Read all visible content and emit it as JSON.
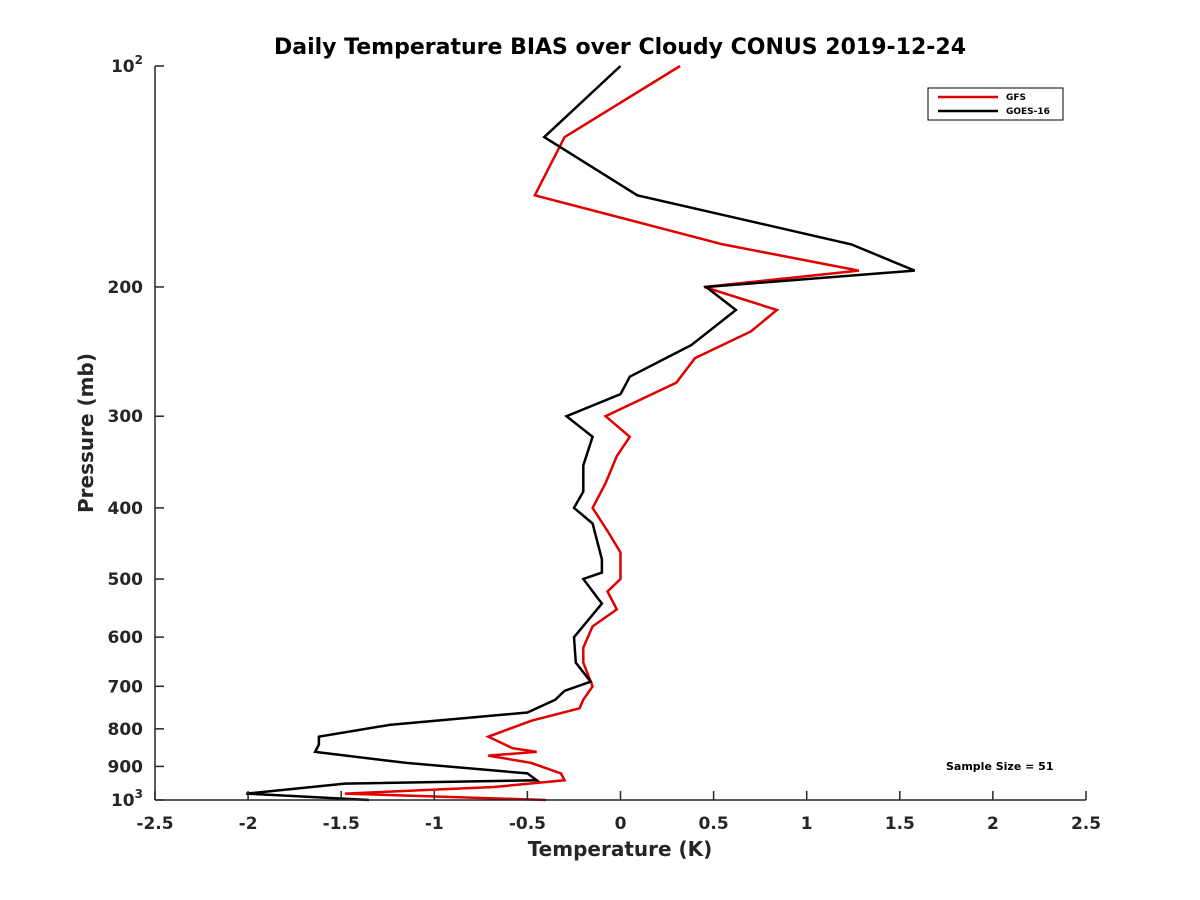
{
  "chart_data": {
    "type": "line",
    "title": "Daily Temperature BIAS over Cloudy CONUS 2019-12-24",
    "xlabel": "Temperature (K)",
    "ylabel": "Pressure (mb)",
    "xlim": [
      -2.5,
      2.5
    ],
    "ylim": [
      100,
      1000
    ],
    "y_scale": "log",
    "y_reversed": true,
    "x_ticks": [
      -2.5,
      -2,
      -1.5,
      -1,
      -0.5,
      0,
      0.5,
      1,
      1.5,
      2,
      2.5
    ],
    "x_tick_labels": [
      "-2.5",
      "-2",
      "-1.5",
      "-1",
      "-0.5",
      "0",
      "0.5",
      "1",
      "1.5",
      "2",
      "2.5"
    ],
    "y_ticks": [
      {
        "value": 100,
        "label": "10",
        "sup": "2"
      },
      {
        "value": 200,
        "label": "200",
        "sup": ""
      },
      {
        "value": 300,
        "label": "300",
        "sup": ""
      },
      {
        "value": 400,
        "label": "400",
        "sup": ""
      },
      {
        "value": 500,
        "label": "500",
        "sup": ""
      },
      {
        "value": 600,
        "label": "600",
        "sup": ""
      },
      {
        "value": 700,
        "label": "700",
        "sup": ""
      },
      {
        "value": 800,
        "label": "800",
        "sup": ""
      },
      {
        "value": 900,
        "label": "900",
        "sup": ""
      },
      {
        "value": 1000,
        "label": "10",
        "sup": "3"
      }
    ],
    "grid": false,
    "legend": {
      "position": "top-right"
    },
    "annotation": "Sample Size = 51",
    "series": [
      {
        "name": "GFS",
        "color": "#e00000",
        "points": [
          [
            0.32,
            100
          ],
          [
            -0.3,
            125
          ],
          [
            -0.46,
            150
          ],
          [
            0.55,
            175
          ],
          [
            1.28,
            190
          ],
          [
            0.45,
            200
          ],
          [
            0.84,
            215
          ],
          [
            0.7,
            230
          ],
          [
            0.4,
            250
          ],
          [
            0.3,
            270
          ],
          [
            -0.08,
            300
          ],
          [
            0.05,
            320
          ],
          [
            -0.02,
            340
          ],
          [
            -0.08,
            370
          ],
          [
            -0.15,
            400
          ],
          [
            -0.07,
            430
          ],
          [
            0,
            460
          ],
          [
            0,
            500
          ],
          [
            -0.07,
            520
          ],
          [
            -0.02,
            550
          ],
          [
            -0.15,
            580
          ],
          [
            -0.2,
            620
          ],
          [
            -0.2,
            650
          ],
          [
            -0.15,
            700
          ],
          [
            -0.2,
            730
          ],
          [
            -0.22,
            750
          ],
          [
            -0.48,
            780
          ],
          [
            -0.71,
            820
          ],
          [
            -0.58,
            850
          ],
          [
            -0.45,
            860
          ],
          [
            -0.71,
            870
          ],
          [
            -0.48,
            890
          ],
          [
            -0.32,
            920
          ],
          [
            -0.3,
            940
          ],
          [
            -0.68,
            960
          ],
          [
            -1.48,
            980
          ],
          [
            -0.4,
            1000
          ]
        ]
      },
      {
        "name": "GOES-16",
        "color": "#000000",
        "points": [
          [
            0,
            100
          ],
          [
            -0.41,
            125
          ],
          [
            0.09,
            150
          ],
          [
            1.24,
            175
          ],
          [
            1.58,
            190
          ],
          [
            0.46,
            200
          ],
          [
            0.62,
            215
          ],
          [
            0.38,
            240
          ],
          [
            0.05,
            265
          ],
          [
            0,
            280
          ],
          [
            -0.29,
            300
          ],
          [
            -0.15,
            320
          ],
          [
            -0.2,
            350
          ],
          [
            -0.2,
            380
          ],
          [
            -0.25,
            400
          ],
          [
            -0.15,
            420
          ],
          [
            -0.1,
            470
          ],
          [
            -0.1,
            490
          ],
          [
            -0.2,
            500
          ],
          [
            -0.1,
            540
          ],
          [
            -0.25,
            600
          ],
          [
            -0.24,
            650
          ],
          [
            -0.16,
            690
          ],
          [
            -0.3,
            710
          ],
          [
            -0.35,
            730
          ],
          [
            -0.5,
            760
          ],
          [
            -1.24,
            790
          ],
          [
            -1.62,
            820
          ],
          [
            -1.62,
            840
          ],
          [
            -1.64,
            860
          ],
          [
            -1.15,
            890
          ],
          [
            -0.5,
            920
          ],
          [
            -0.45,
            940
          ],
          [
            -1.48,
            950
          ],
          [
            -1.83,
            970
          ],
          [
            -2.01,
            980
          ],
          [
            -1.35,
            1000
          ]
        ]
      }
    ]
  }
}
